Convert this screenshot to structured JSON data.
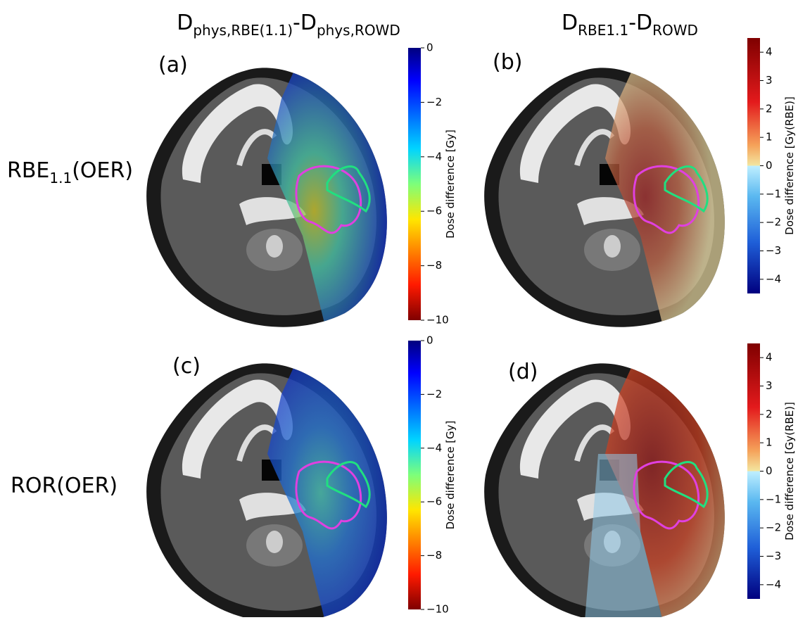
{
  "column_titles": [
    [
      "D",
      "phys,RBE(1.1)",
      "-D",
      "phys,ROWD"
    ],
    [
      "D",
      "RBE1.1",
      "-D",
      "ROWD"
    ]
  ],
  "row_labels": [
    [
      "RBE",
      "1.1",
      "(OER)"
    ],
    [
      "ROR(OER)"
    ]
  ],
  "panels": [
    {
      "label": "(a)",
      "colorbar": {
        "label": "Dose difference [Gy]",
        "lim": [
          -10,
          0
        ],
        "ticks": [
          {
            "value": 0,
            "label": "0"
          },
          {
            "value": -2,
            "label": "−2"
          },
          {
            "value": -4,
            "label": "−4"
          },
          {
            "value": -6,
            "label": "−6"
          },
          {
            "value": -8,
            "label": "−8"
          },
          {
            "value": -10,
            "label": "−10"
          }
        ]
      }
    },
    {
      "label": "(b)",
      "colorbar": {
        "label": "Dose difference [Gy(RBE)]",
        "lim": [
          -4.5,
          4.5
        ],
        "ticks": [
          4,
          3,
          2,
          1,
          0,
          {
            "value": -1,
            "label": "−1"
          },
          {
            "value": -2,
            "label": "−2"
          },
          {
            "value": -3,
            "label": "−3"
          },
          {
            "value": -4,
            "label": "−4"
          }
        ]
      }
    },
    {
      "label": "(c)",
      "colorbar": {
        "label": "Dose difference [Gy]",
        "lim": [
          -10,
          0
        ],
        "ticks": [
          {
            "value": 0,
            "label": "0"
          },
          {
            "value": -2,
            "label": "−2"
          },
          {
            "value": -4,
            "label": "−4"
          },
          {
            "value": -6,
            "label": "−6"
          },
          {
            "value": -8,
            "label": "−8"
          },
          {
            "value": -10,
            "label": "−10"
          }
        ]
      }
    },
    {
      "label": "(d)",
      "colorbar": {
        "label": "Dose difference [Gy(RBE)]",
        "lim": [
          -4.5,
          4.5
        ],
        "ticks": [
          4,
          3,
          2,
          1,
          0,
          {
            "value": -1,
            "label": "−1"
          },
          {
            "value": -2,
            "label": "−2"
          },
          {
            "value": -3,
            "label": "−3"
          },
          {
            "value": -4,
            "label": "−4"
          }
        ]
      }
    }
  ]
}
